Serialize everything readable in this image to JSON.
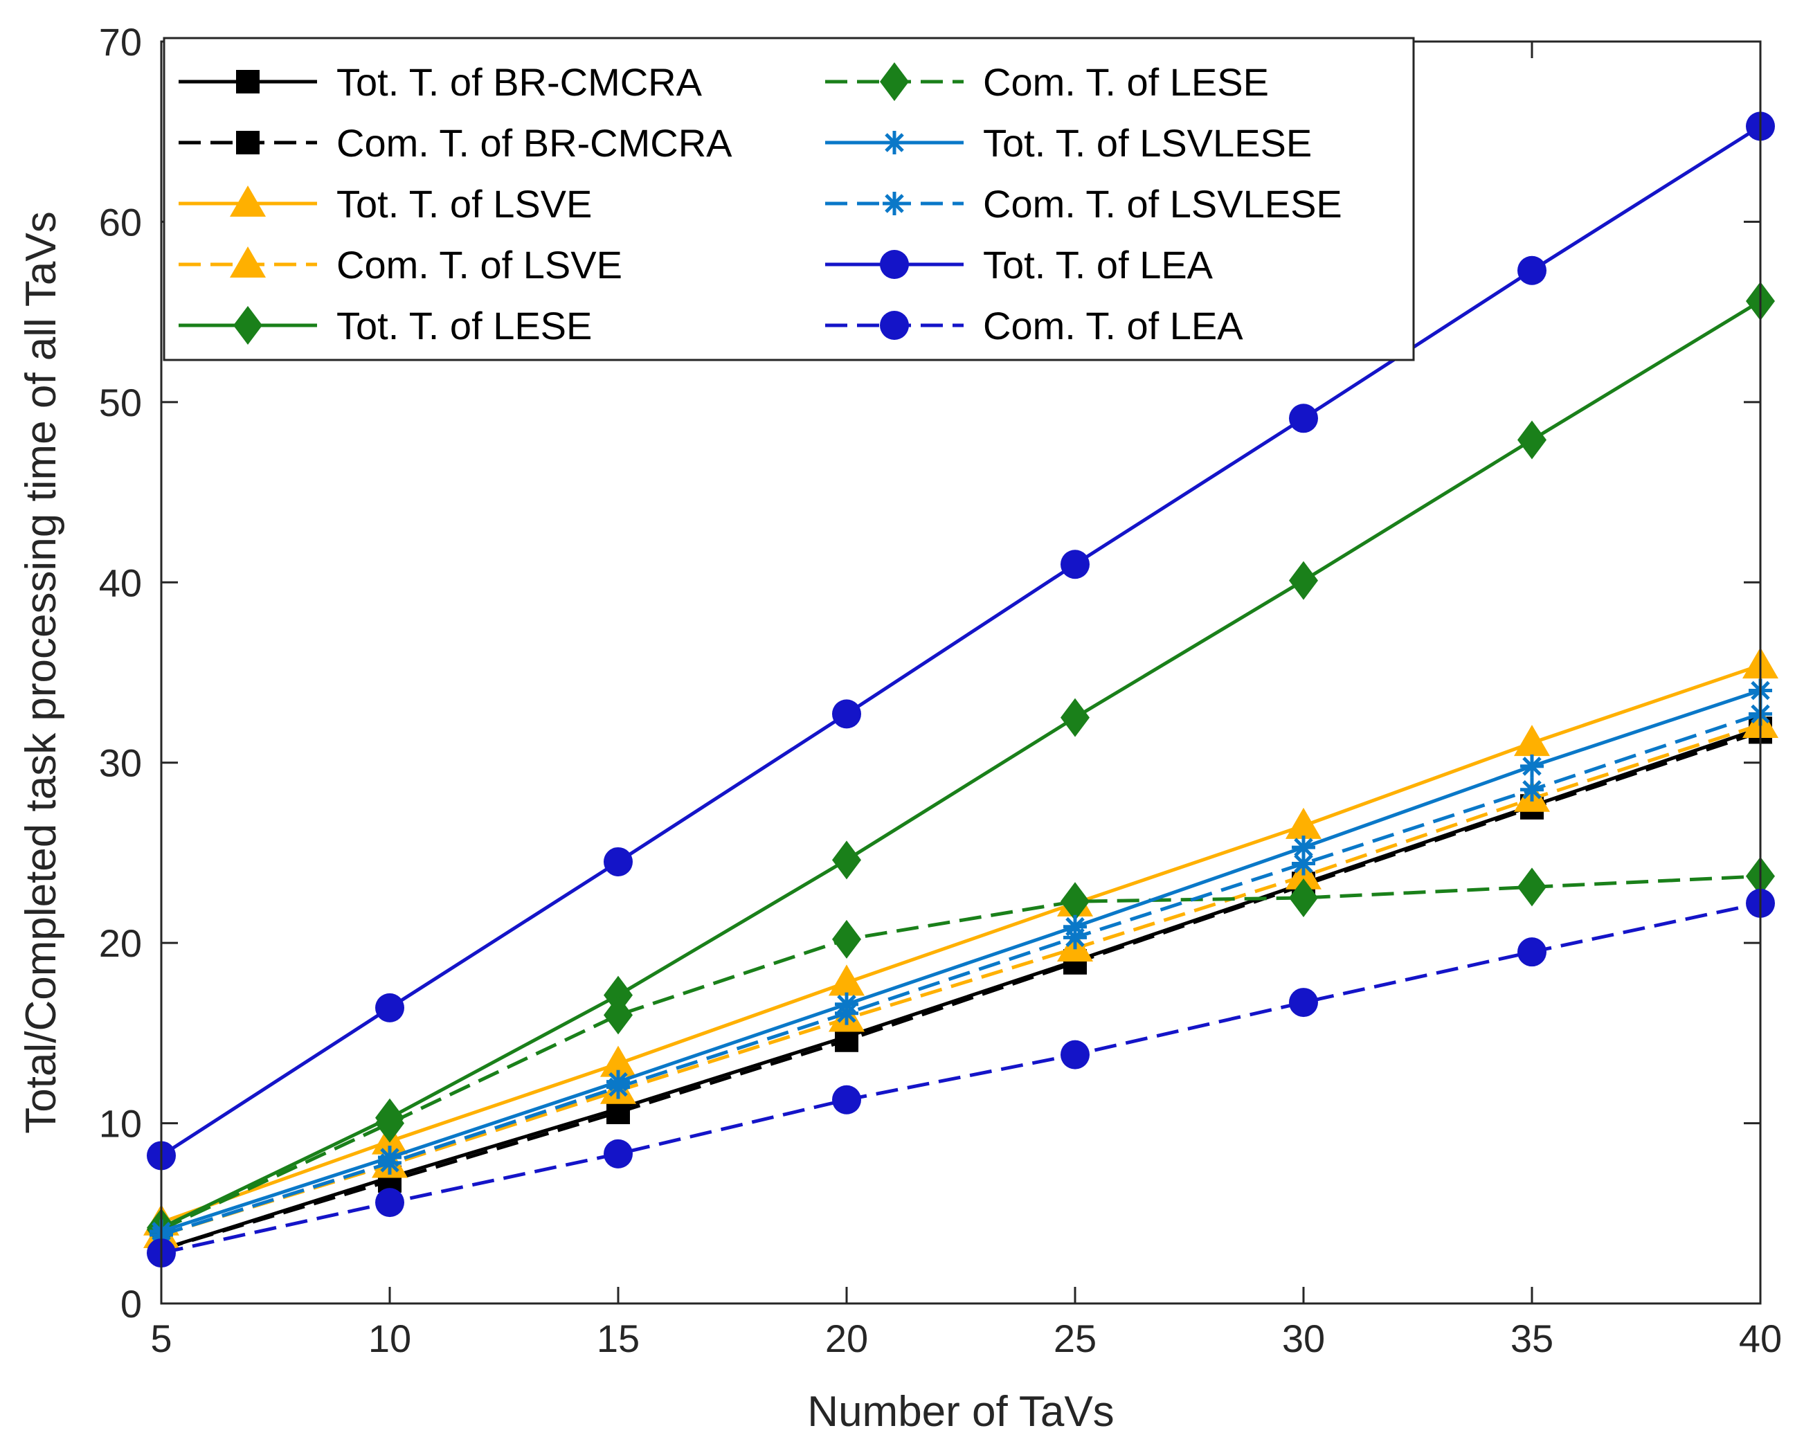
{
  "chart_data": {
    "type": "line",
    "title": "",
    "xlabel": "Number of TaVs",
    "ylabel": "Total/Completed task processing time of all TaVs",
    "xlim": [
      5,
      40
    ],
    "ylim": [
      0,
      70
    ],
    "xticks": [
      5,
      10,
      15,
      20,
      25,
      30,
      35,
      40
    ],
    "yticks": [
      0,
      10,
      20,
      30,
      40,
      50,
      60,
      70
    ],
    "grid": false,
    "legend_position": "top-left",
    "x": [
      5,
      10,
      15,
      20,
      25,
      30,
      35,
      40
    ],
    "series": [
      {
        "name": "Tot. T. of BR-CMCRA",
        "color": "#000000",
        "dash": "solid",
        "marker": "square",
        "values": [
          3.0,
          7.0,
          10.8,
          14.8,
          19.0,
          23.3,
          27.6,
          31.9
        ]
      },
      {
        "name": "Com. T. of BR-CMCRA",
        "color": "#000000",
        "dash": "dashed",
        "marker": "square",
        "values": [
          3.0,
          6.8,
          10.6,
          14.6,
          18.9,
          23.2,
          27.5,
          31.7
        ]
      },
      {
        "name": "Tot. T. of LSVE",
        "color": "#FFB000",
        "dash": "solid",
        "marker": "triangle",
        "values": [
          4.5,
          9.0,
          13.3,
          17.8,
          22.2,
          26.5,
          31.1,
          35.4
        ]
      },
      {
        "name": "Com. T. of LSVE",
        "color": "#FFB000",
        "dash": "dashed",
        "marker": "triangle",
        "values": [
          3.8,
          7.7,
          11.8,
          15.8,
          19.7,
          23.7,
          28.0,
          32.1
        ]
      },
      {
        "name": "Tot. T. of LESE",
        "color": "#1A801A",
        "dash": "solid",
        "marker": "diamond",
        "values": [
          4.2,
          10.3,
          17.1,
          24.6,
          32.5,
          40.1,
          47.9,
          55.6
        ]
      },
      {
        "name": "Com. T. of LESE",
        "color": "#1A801A",
        "dash": "dashed",
        "marker": "diamond",
        "values": [
          4.1,
          10.0,
          16.0,
          20.2,
          22.3,
          22.5,
          23.1,
          23.7
        ]
      },
      {
        "name": "Tot. T. of LSVLESE",
        "color": "#0A78C8",
        "dash": "solid",
        "marker": "asterisk",
        "values": [
          4.0,
          8.1,
          12.3,
          16.6,
          20.9,
          25.3,
          29.8,
          34.0
        ]
      },
      {
        "name": "Com. T. of LSVLESE",
        "color": "#0A78C8",
        "dash": "dashed",
        "marker": "asterisk",
        "values": [
          3.8,
          7.8,
          12.0,
          16.1,
          20.3,
          24.4,
          28.5,
          32.7
        ]
      },
      {
        "name": "Tot. T. of LEA",
        "color": "#1414C8",
        "dash": "solid",
        "marker": "circle",
        "values": [
          8.2,
          16.4,
          24.5,
          32.7,
          41.0,
          49.1,
          57.3,
          65.3
        ]
      },
      {
        "name": "Com. T. of LEA",
        "color": "#1414C8",
        "dash": "dashed",
        "marker": "circle",
        "values": [
          2.8,
          5.6,
          8.3,
          11.3,
          13.8,
          16.7,
          19.5,
          22.2
        ]
      }
    ]
  }
}
